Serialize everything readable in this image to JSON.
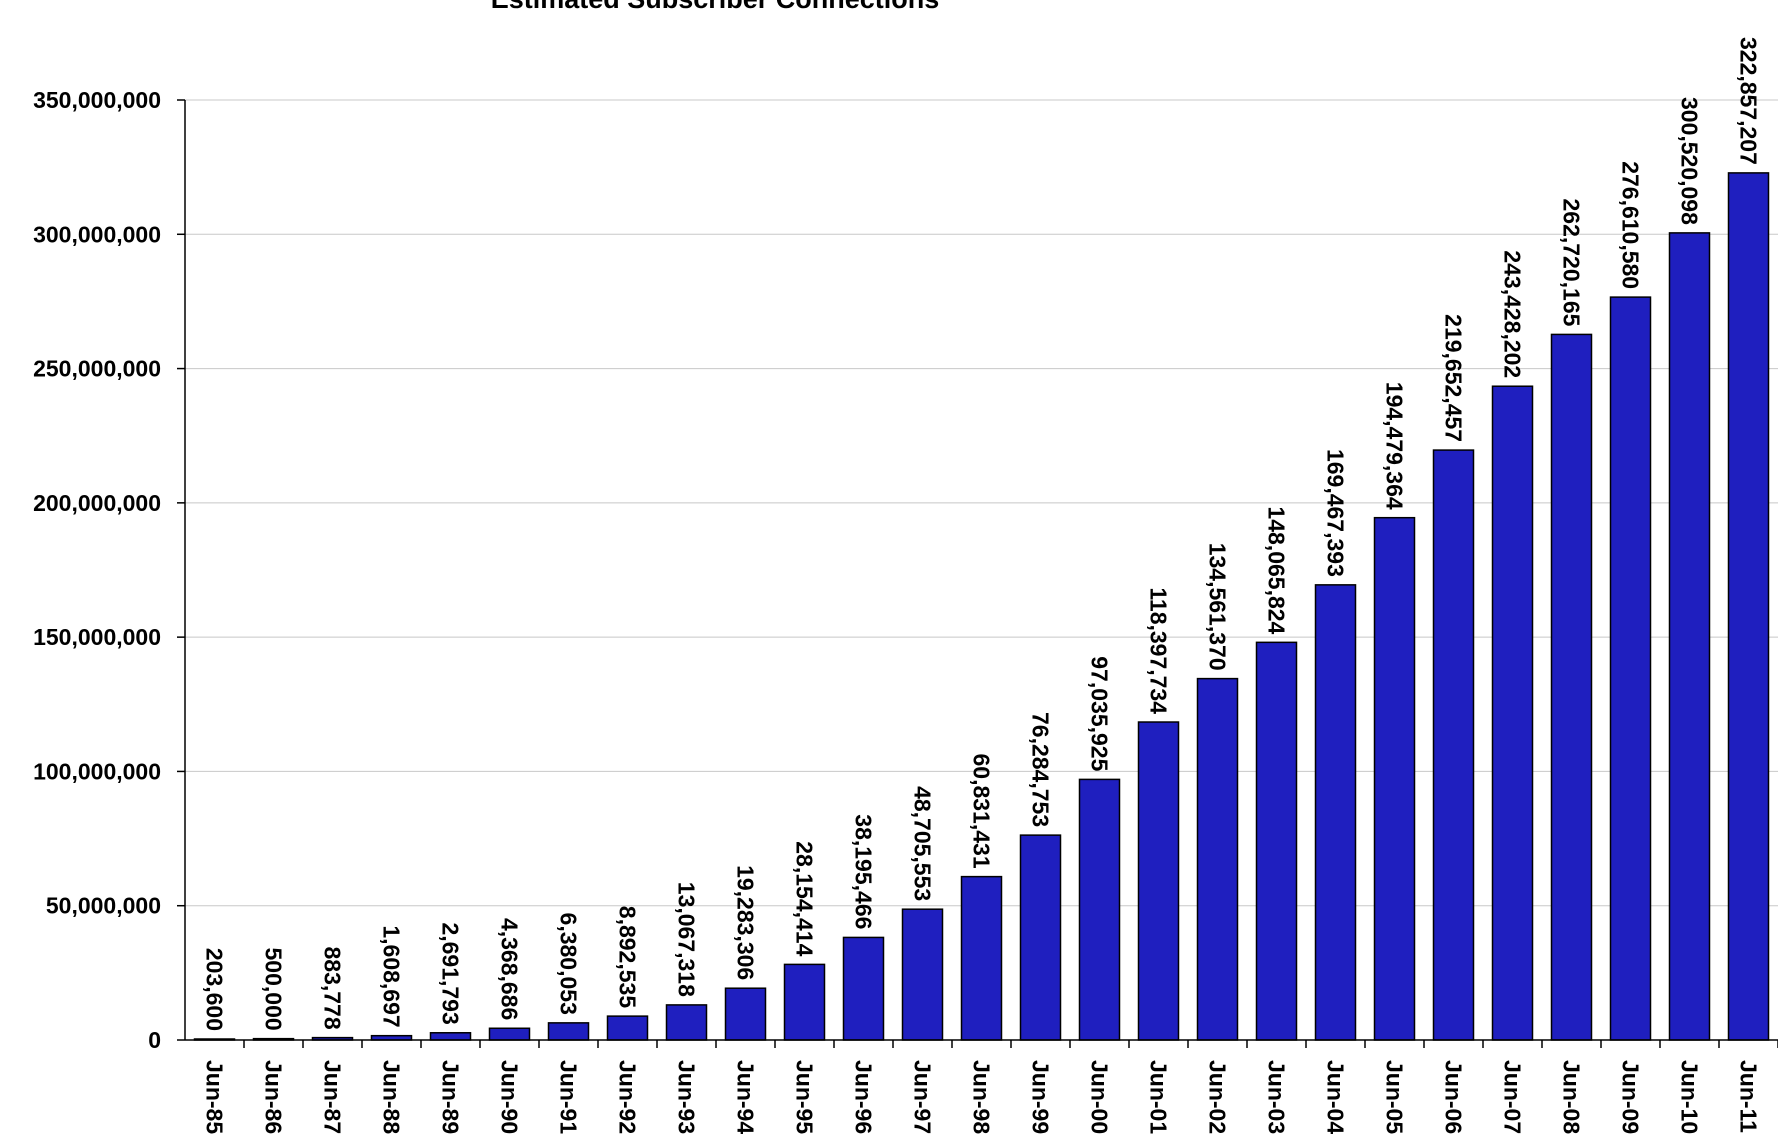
{
  "chart_data": {
    "type": "bar",
    "title": "Estimated Subscriber Connections",
    "xlabel": "",
    "ylabel": "",
    "ylim": [
      0,
      350000000
    ],
    "yticks": [
      {
        "value": 0,
        "label": "0"
      },
      {
        "value": 50000000,
        "label": "50,000,000"
      },
      {
        "value": 100000000,
        "label": "100,000,000"
      },
      {
        "value": 150000000,
        "label": "150,000,000"
      },
      {
        "value": 200000000,
        "label": "200,000,000"
      },
      {
        "value": 250000000,
        "label": "250,000,000"
      },
      {
        "value": 300000000,
        "label": "300,000,000"
      },
      {
        "value": 350000000,
        "label": "350,000,000"
      }
    ],
    "grid": true,
    "bar_color": "#1f1fbf",
    "categories": [
      "Jun-85",
      "Jun-86",
      "Jun-87",
      "Jun-88",
      "Jun-89",
      "Jun-90",
      "Jun-91",
      "Jun-92",
      "Jun-93",
      "Jun-94",
      "Jun-95",
      "Jun-96",
      "Jun-97",
      "Jun-98",
      "Jun-99",
      "Jun-00",
      "Jun-01",
      "Jun-02",
      "Jun-03",
      "Jun-04",
      "Jun-05",
      "Jun-06",
      "Jun-07",
      "Jun-08",
      "Jun-09",
      "Jun-10",
      "Jun-11"
    ],
    "values": [
      203600,
      500000,
      883778,
      1608697,
      2691793,
      4368686,
      6380053,
      8892535,
      13067318,
      19283306,
      28154414,
      38195466,
      48705553,
      60831431,
      76284753,
      97035925,
      118397734,
      134561370,
      148065824,
      169467393,
      194479364,
      219652457,
      243428202,
      262720165,
      276610580,
      300520098,
      322857207
    ],
    "data_labels": [
      "203,600",
      "500,000",
      "883,778",
      "1,608,697",
      "2,691,793",
      "4,368,686",
      "6,380,053",
      "8,892,535",
      "13,067,318",
      "19,283,306",
      "28,154,414",
      "38,195,466",
      "48,705,553",
      "60,831,431",
      "76,284,753",
      "97,035,925",
      "118,397,734",
      "134,561,370",
      "148,065,824",
      "169,467,393",
      "194,479,364",
      "219,652,457",
      "243,428,202",
      "262,720,165",
      "276,610,580",
      "300,520,098",
      "322,857,207"
    ]
  }
}
